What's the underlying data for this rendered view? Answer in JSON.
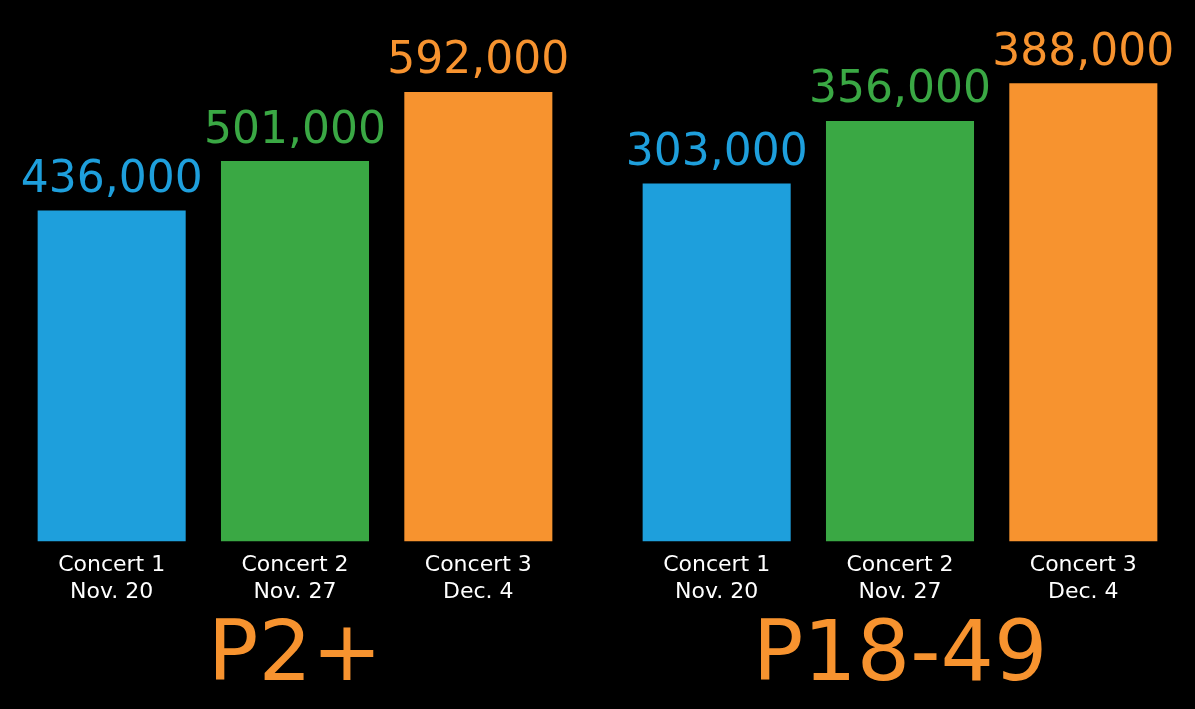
{
  "chart_data": [
    {
      "type": "bar",
      "title": "P2+",
      "categories": [
        "Concert 1\nNov. 20",
        "Concert 2\nNov. 27",
        "Concert 3\nDec. 4"
      ],
      "values": [
        436000,
        501000,
        592000
      ],
      "value_labels": [
        "436,000",
        "501,000",
        "592,000"
      ],
      "colors": [
        "#1e9fdc",
        "#3aa844",
        "#f7932f"
      ]
    },
    {
      "type": "bar",
      "title": "P18-49",
      "categories": [
        "Concert 1\nNov. 20",
        "Concert 2\nNov. 27",
        "Concert 3\nDec. 4"
      ],
      "values": [
        303000,
        356000,
        388000
      ],
      "value_labels": [
        "303,000",
        "356,000",
        "388,000"
      ],
      "colors": [
        "#1e9fdc",
        "#3aa844",
        "#f7932f"
      ]
    }
  ]
}
